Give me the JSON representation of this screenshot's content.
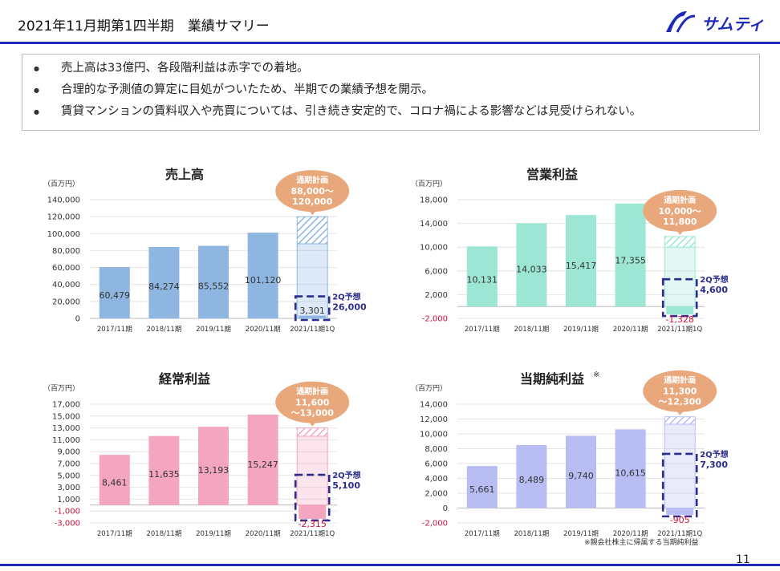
{
  "page": {
    "title": "2021年11月期第1四半期　業績サマリー",
    "logo_text": "サムティ",
    "page_number": "11",
    "footnote": "※親会社株主に帰属する当期純利益"
  },
  "bullets": [
    "売上高は33億円、各段階利益は赤字での着地。",
    "合理的な予測値の算定に目処がついたため、半期での業績予想を開示。",
    "賃貸マンションの賃料収入や売買については、引き続き安定的で、コロナ禍による影響などは見受けられない。"
  ],
  "colors": {
    "accent_blue": "#1d2bb8",
    "dashed_box": "#2b2d8c",
    "negative": "#d0103a",
    "bubble": "#e9a87c",
    "sales": "#8fb6e0",
    "operating": "#9ee6d4",
    "ordinary": "#f4a6c0",
    "net": "#b7bdf3"
  },
  "chart_data": [
    {
      "type": "bar",
      "title": "売上高",
      "unit": "（百万円）",
      "categories": [
        "2017/11期",
        "2018/11期",
        "2019/11期",
        "2020/11期",
        "2021/11期1Q"
      ],
      "values": [
        60479,
        84274,
        85552,
        101120,
        3301
      ],
      "value_labels": [
        "60,479",
        "84,274",
        "85,552",
        "101,120",
        "3,301"
      ],
      "y_ticks": [
        "140,000",
        "120,000",
        "100,000",
        "80,000",
        "60,000",
        "40,000",
        "20,000",
        "0"
      ],
      "ylim": [
        0,
        140000
      ],
      "full_year_plan": {
        "label": "通期計画",
        "range": "88,000～\n120,000",
        "low": 88000,
        "high": 120000
      },
      "q2_forecast": {
        "label": "2Q予想",
        "value_label": "26,000",
        "value": 26000
      },
      "color": "#8fb6e0"
    },
    {
      "type": "bar",
      "title": "営業利益",
      "unit": "（百万円）",
      "categories": [
        "2017/11期",
        "2018/11期",
        "2019/11期",
        "2020/11期",
        "2021/11期1Q"
      ],
      "values": [
        10131,
        14033,
        15417,
        17355,
        -1328
      ],
      "value_labels": [
        "10,131",
        "14,033",
        "15,417",
        "17,355",
        "-1,328"
      ],
      "y_ticks": [
        "18,000",
        "14,000",
        "10,000",
        "6,000",
        "2,000",
        "-2,000"
      ],
      "ylim": [
        -2000,
        18000
      ],
      "full_year_plan": {
        "label": "通期計画",
        "range": "10,000～\n11,800",
        "low": 10000,
        "high": 11800
      },
      "q2_forecast": {
        "label": "2Q予想",
        "value_label": "4,600",
        "value": 4600
      },
      "color": "#9ee6d4"
    },
    {
      "type": "bar",
      "title": "経常利益",
      "unit": "（百万円）",
      "categories": [
        "2017/11期",
        "2018/11期",
        "2019/11期",
        "2020/11期",
        "2021/11期1Q"
      ],
      "values": [
        8461,
        11635,
        13193,
        15247,
        -2315
      ],
      "value_labels": [
        "8,461",
        "11,635",
        "13,193",
        "15,247",
        "-2,315"
      ],
      "y_ticks": [
        "17,000",
        "15,000",
        "13,000",
        "11,000",
        "9,000",
        "7,000",
        "5,000",
        "3,000",
        "1,000",
        "-1,000",
        "-3,000"
      ],
      "ylim": [
        -3000,
        17000
      ],
      "full_year_plan": {
        "label": "通期計画",
        "range": "11,600\n～13,000",
        "low": 11600,
        "high": 13000
      },
      "q2_forecast": {
        "label": "2Q予想",
        "value_label": "5,100",
        "value": 5100
      },
      "color": "#f4a6c0"
    },
    {
      "type": "bar",
      "title": "当期純利益",
      "title_mark": "※",
      "unit": "（百万円）",
      "categories": [
        "2017/11期",
        "2018/11期",
        "2019/11期",
        "2020/11期",
        "2021/11期1Q"
      ],
      "values": [
        5661,
        8489,
        9740,
        10615,
        -905
      ],
      "value_labels": [
        "5,661",
        "8,489",
        "9,740",
        "10,615",
        "-905"
      ],
      "y_ticks": [
        "14,000",
        "12,000",
        "10,000",
        "8,000",
        "6,000",
        "4,000",
        "2,000",
        "0",
        "-2,000"
      ],
      "ylim": [
        -2000,
        14000
      ],
      "full_year_plan": {
        "label": "通期計画",
        "range": "11,300\n～12,300",
        "low": 11300,
        "high": 12300
      },
      "q2_forecast": {
        "label": "2Q予想",
        "value_label": "7,300",
        "value": 7300
      },
      "color": "#b7bdf3"
    }
  ]
}
